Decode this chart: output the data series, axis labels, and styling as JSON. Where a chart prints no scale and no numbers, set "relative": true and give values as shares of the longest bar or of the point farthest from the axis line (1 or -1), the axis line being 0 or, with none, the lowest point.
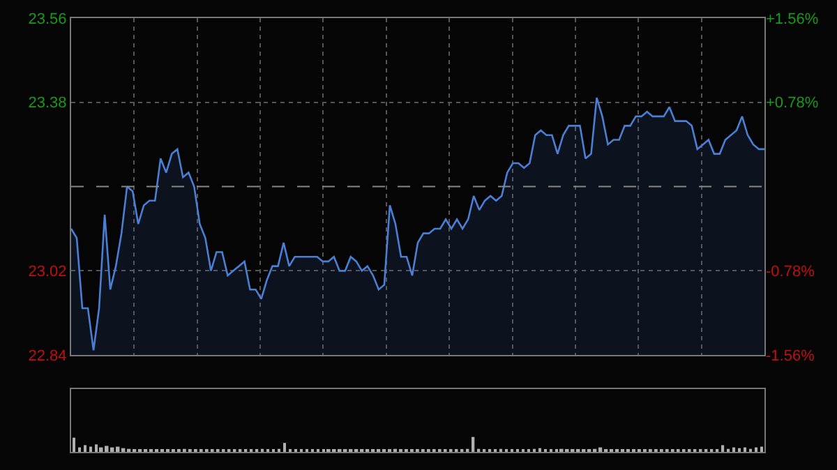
{
  "chart_data": [
    {
      "type": "area",
      "categories": [
        null,
        null,
        null,
        null,
        null,
        null,
        null,
        null,
        null,
        null,
        null,
        null,
        null,
        null,
        null,
        null,
        null,
        null,
        null,
        null,
        null,
        null,
        null,
        null,
        null,
        null,
        null,
        null,
        null,
        null,
        null,
        null,
        null,
        null,
        null,
        null,
        null,
        null,
        null,
        null,
        null,
        null,
        null,
        null,
        null,
        null,
        null,
        null,
        null,
        null,
        null,
        null,
        null,
        null,
        null,
        null,
        null,
        null,
        null,
        null,
        null,
        null,
        null,
        null,
        null,
        null,
        null,
        null,
        null,
        null,
        null,
        null,
        null,
        null,
        null,
        null,
        null,
        null,
        null,
        null,
        null,
        null,
        null,
        null,
        null,
        null,
        null,
        null,
        null,
        null,
        null,
        null,
        null,
        null,
        null,
        null,
        null,
        null,
        null,
        null,
        null,
        null,
        null,
        null,
        null,
        null,
        null,
        null,
        null,
        null,
        null,
        null,
        null,
        null,
        null,
        null,
        null,
        null,
        null,
        null,
        null,
        null,
        null,
        null,
        null
      ],
      "series": [
        {
          "color": "#4a7fd4",
          "values": [
            23.11,
            23.09,
            22.94,
            22.94,
            22.85,
            22.94,
            23.14,
            22.98,
            23.03,
            23.1,
            23.2,
            23.19,
            23.12,
            23.16,
            23.17,
            23.17,
            23.26,
            23.23,
            23.27,
            23.28,
            23.22,
            23.23,
            23.2,
            23.12,
            23.09,
            23.02,
            23.06,
            23.06,
            23.01,
            23.02,
            23.03,
            23.04,
            22.98,
            22.98,
            22.96,
            23.0,
            23.03,
            23.03,
            23.08,
            23.03,
            23.05,
            23.05,
            23.05,
            23.05,
            23.05,
            23.04,
            23.04,
            23.05,
            23.02,
            23.02,
            23.05,
            23.04,
            23.02,
            23.03,
            23.01,
            22.98,
            22.99,
            23.16,
            23.12,
            23.05,
            23.05,
            23.01,
            23.08,
            23.1,
            23.1,
            23.11,
            23.11,
            23.13,
            23.11,
            23.13,
            23.11,
            23.13,
            23.18,
            23.15,
            23.17,
            23.18,
            23.17,
            23.18,
            23.23,
            23.25,
            23.25,
            23.24,
            23.25,
            23.31,
            23.32,
            23.31,
            23.31,
            23.27,
            23.31,
            23.33,
            23.33,
            23.33,
            23.26,
            23.27,
            23.39,
            23.35,
            23.29,
            23.3,
            23.3,
            23.33,
            23.33,
            23.35,
            23.35,
            23.36,
            23.35,
            23.35,
            23.35,
            23.37,
            23.34,
            23.34,
            23.34,
            23.33,
            23.28,
            23.29,
            23.3,
            23.27,
            23.27,
            23.3,
            23.31,
            23.32,
            23.35,
            23.31,
            23.29,
            23.28,
            23.28
          ]
        }
      ],
      "ylim": [
        22.84,
        23.56
      ],
      "yticks": [
        22.84,
        23.02,
        23.38,
        23.56
      ],
      "y2lim": [
        -1.56,
        1.56
      ],
      "y2ticks": [
        {
          "value": -1.56,
          "label": "-1.56%"
        },
        {
          "value": -0.78,
          "label": "-0.78%"
        },
        {
          "value": 0.78,
          "label": "+0.78%"
        },
        {
          "value": 1.56,
          "label": "+1.56%"
        }
      ],
      "ref_lines": [
        {
          "axis": "y",
          "value": 23.2,
          "line_style": "dashed"
        }
      ],
      "grid": true
    },
    {
      "type": "bar",
      "relative": true,
      "color": "#b0b0b0",
      "categories": [
        null,
        null,
        null,
        null,
        null,
        null,
        null,
        null,
        null,
        null,
        null,
        null,
        null,
        null,
        null,
        null,
        null,
        null,
        null,
        null,
        null,
        null,
        null,
        null,
        null,
        null,
        null,
        null,
        null,
        null,
        null,
        null,
        null,
        null,
        null,
        null,
        null,
        null,
        null,
        null,
        null,
        null,
        null,
        null,
        null,
        null,
        null,
        null,
        null,
        null,
        null,
        null,
        null,
        null,
        null,
        null,
        null,
        null,
        null,
        null,
        null,
        null,
        null,
        null,
        null,
        null,
        null,
        null,
        null,
        null,
        null,
        null,
        null,
        null,
        null,
        null,
        null,
        null,
        null,
        null,
        null,
        null,
        null,
        null,
        null,
        null,
        null,
        null,
        null,
        null,
        null,
        null,
        null,
        null,
        null,
        null,
        null,
        null,
        null,
        null,
        null,
        null,
        null,
        null,
        null,
        null,
        null,
        null,
        null,
        null,
        null,
        null,
        null,
        null,
        null,
        null,
        null,
        null,
        null,
        null,
        null,
        null,
        null,
        null,
        null
      ],
      "values": [
        0.95,
        0.3,
        0.45,
        0.35,
        0.5,
        0.3,
        0.4,
        0.3,
        0.35,
        0.25,
        0.2,
        0.15,
        0.12,
        0.15,
        0.1,
        0.12,
        0.15,
        0.1,
        0.12,
        0.15,
        0.2,
        0.12,
        0.1,
        0.12,
        0.15,
        0.1,
        0.12,
        0.1,
        0.12,
        0.15,
        0.12,
        0.1,
        0.12,
        0.15,
        0.2,
        0.15,
        0.12,
        0.2,
        0.6,
        0.15,
        0.12,
        0.1,
        0.12,
        0.15,
        0.1,
        0.12,
        0.1,
        0.12,
        0.15,
        0.12,
        0.1,
        0.12,
        0.15,
        0.12,
        0.1,
        0.12,
        0.1,
        0.15,
        0.2,
        0.12,
        0.1,
        0.12,
        0.15,
        0.12,
        0.1,
        0.12,
        0.15,
        0.12,
        0.1,
        0.12,
        0.15,
        0.2,
        1.0,
        0.2,
        0.15,
        0.12,
        0.15,
        0.2,
        0.15,
        0.12,
        0.1,
        0.12,
        0.15,
        0.2,
        0.25,
        0.15,
        0.12,
        0.15,
        0.2,
        0.15,
        0.12,
        0.1,
        0.12,
        0.15,
        0.2,
        0.3,
        0.15,
        0.12,
        0.1,
        0.12,
        0.15,
        0.12,
        0.1,
        0.12,
        0.1,
        0.12,
        0.15,
        0.12,
        0.1,
        0.12,
        0.1,
        0.12,
        0.15,
        0.12,
        0.1,
        0.12,
        0.15,
        0.45,
        0.2,
        0.3,
        0.25,
        0.3,
        0.2,
        0.3,
        0.35
      ]
    }
  ]
}
